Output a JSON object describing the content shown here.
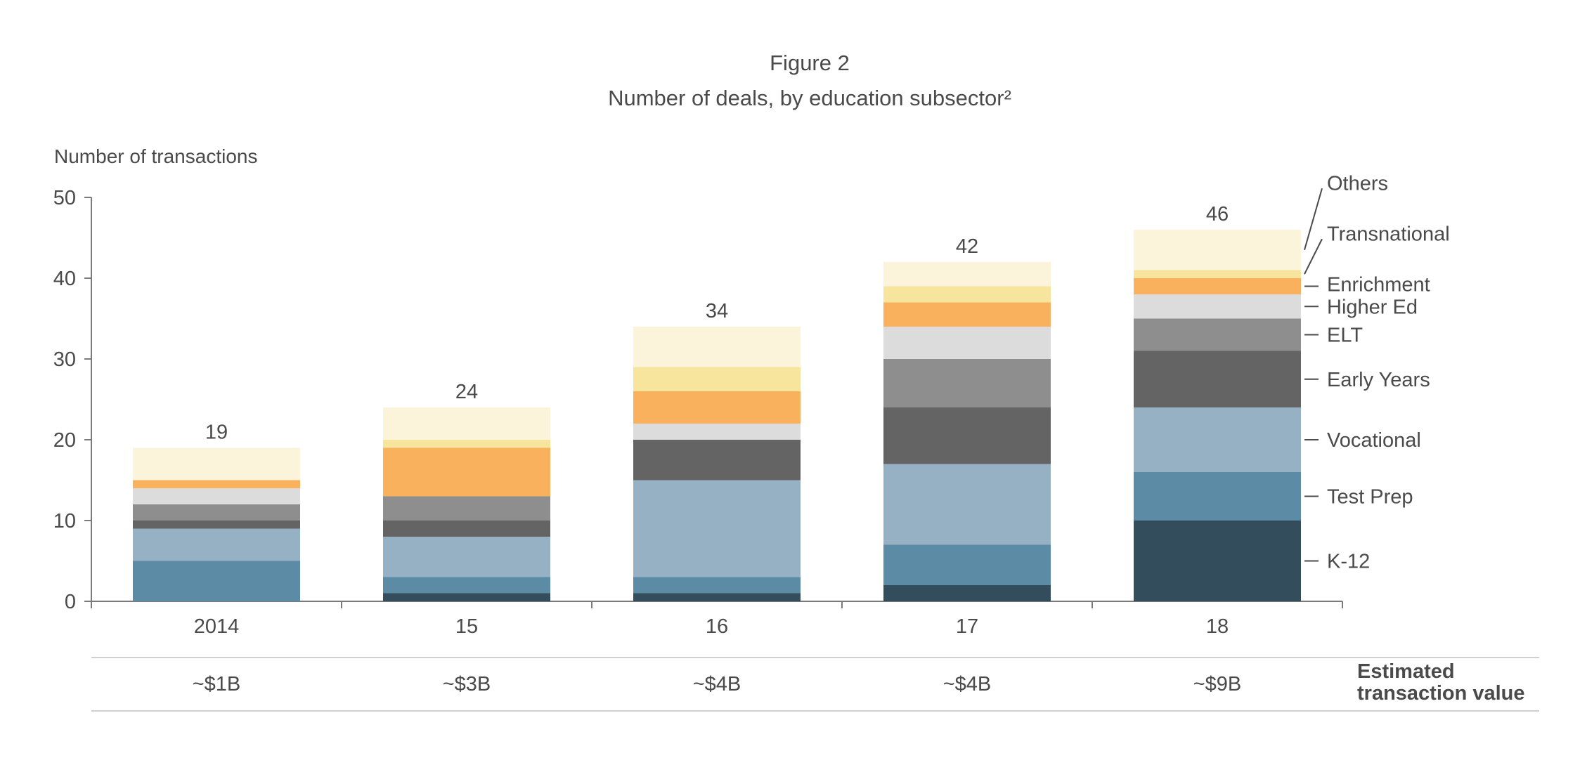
{
  "figure": {
    "label": "Figure 2",
    "title": "Number of deals, by education subsector²"
  },
  "chart_data": {
    "type": "bar",
    "stacked": true,
    "title": "Number of deals, by education subsector²",
    "ylabel": "Number of transactions",
    "xlabel": "",
    "ylim": [
      0,
      50
    ],
    "yticks": [
      0,
      10,
      20,
      30,
      40,
      50
    ],
    "categories": [
      "2014",
      "15",
      "16",
      "17",
      "18"
    ],
    "totals": [
      19,
      24,
      34,
      42,
      46
    ],
    "series": [
      {
        "name": "K-12",
        "values": [
          0,
          1,
          1,
          2,
          10
        ],
        "color": "#344d5d"
      },
      {
        "name": "Test Prep",
        "values": [
          5,
          2,
          2,
          5,
          6
        ],
        "color": "#5c8ba6"
      },
      {
        "name": "Vocational",
        "values": [
          4,
          5,
          12,
          10,
          8
        ],
        "color": "#96b0c4"
      },
      {
        "name": "Early Years",
        "values": [
          1,
          2,
          5,
          7,
          7
        ],
        "color": "#646464"
      },
      {
        "name": "ELT",
        "values": [
          2,
          3,
          0,
          6,
          4
        ],
        "color": "#8e8e8e"
      },
      {
        "name": "Higher Ed",
        "values": [
          2,
          0,
          2,
          4,
          3
        ],
        "color": "#dcdcdc"
      },
      {
        "name": "Enrichment",
        "values": [
          1,
          6,
          4,
          3,
          2
        ],
        "color": "#f9b15e"
      },
      {
        "name": "Transnational",
        "values": [
          0,
          1,
          3,
          2,
          1
        ],
        "color": "#f8e59d"
      },
      {
        "name": "Others",
        "values": [
          4,
          4,
          5,
          3,
          5
        ],
        "color": "#fbf4da"
      }
    ],
    "legend_placement": "right"
  },
  "value_row": {
    "label_line1": "Estimated",
    "label_line2": "transaction value",
    "values": [
      "~$1B",
      "~$3B",
      "~$4B",
      "~$4B",
      "~$9B"
    ]
  },
  "colors": {
    "axis": "#7a7a7a",
    "text": "#4a4a4a",
    "rule": "#d0d0d0"
  }
}
